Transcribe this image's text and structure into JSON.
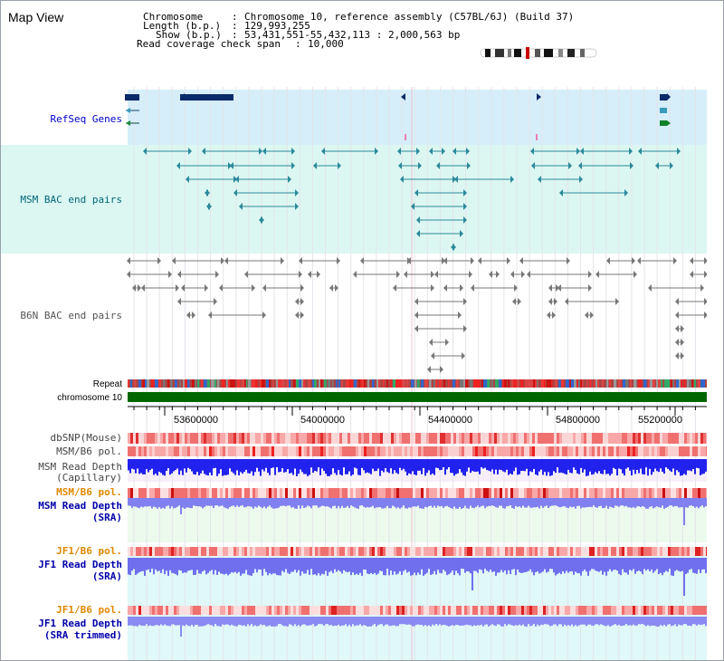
{
  "page_title": "Map View",
  "header": {
    "chromosome_label": "Chromosome",
    "chromosome_value": "Chromosome 10, reference assembly (C57BL/6J) (Build 37)",
    "length_label": "Length (b.p.)",
    "length_value": "129,993,255",
    "show_label": "Show (b.p.)",
    "show_value": "53,431,551-55,432,113 : 2,000,563 bp",
    "coverage_label": "Read coverage check span",
    "coverage_value": "10,000"
  },
  "tracks": {
    "refseq": "RefSeq Genes",
    "msm_bac": "MSM BAC end pairs",
    "b6n_bac": "B6N BAC end pairs",
    "repeat": "Repeat",
    "chromosome": "chromosome 10",
    "dbsnp": "dbSNP(Mouse)",
    "msm_b6_pol_1": "MSM/B6 pol.",
    "msm_read_depth_cap_1": "MSM Read Depth",
    "msm_read_depth_cap_2": "(Capillary)",
    "msm_b6_pol_2": "MSM/B6 pol.",
    "msm_read_depth_sra_1": "MSM Read Depth",
    "msm_read_depth_sra_2": "(SRA)",
    "jf1_b6_pol_1": "JF1/B6 pol.",
    "jf1_read_depth_sra_1": "JF1 Read Depth",
    "jf1_read_depth_sra_2": "(SRA)",
    "jf1_b6_pol_2": "JF1/B6 pol.",
    "jf1_read_depth_trim_1": "JF1 Read Depth",
    "jf1_read_depth_trim_2": "(SRA trimmed)"
  },
  "axis": {
    "ticks": [
      "53600000",
      "54000000",
      "54400000",
      "54800000",
      "55200000"
    ]
  },
  "colors": {
    "refseq_band": "#d6eefa",
    "msm_band": "#dcf7f2",
    "label_blue": "#0000cc",
    "label_teal": "#006677",
    "label_gray": "#555555",
    "label_orange": "#e08800",
    "chromosome_green": "#006600",
    "depth_blue": "#2222ee",
    "depth_light": "#7f7ff0",
    "sra_bg": "#ecfaee",
    "jf1_bg": "#e0f8f8"
  }
}
